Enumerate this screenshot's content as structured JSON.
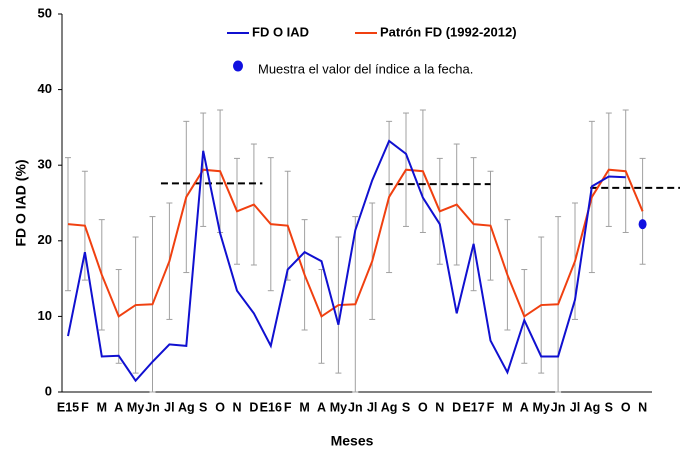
{
  "chart_data": {
    "type": "line",
    "y_label": "FD O IAD (%)",
    "x_label": "Meses",
    "categories": [
      "E15",
      "F",
      "M",
      "A",
      "My",
      "Jn",
      "Jl",
      "Ag",
      "S",
      "O",
      "N",
      "D",
      "E16",
      "F",
      "M",
      "A",
      "My",
      "Jn",
      "Jl",
      "Ag",
      "S",
      "O",
      "N",
      "D",
      "E17",
      "F",
      "M",
      "A",
      "My",
      "Jn",
      "Jl",
      "Ag",
      "S",
      "O",
      "N"
    ],
    "ylim": [
      0,
      50
    ],
    "yticks": [
      0,
      10,
      20,
      30,
      40,
      50
    ],
    "grid": false,
    "series": [
      {
        "name": "FD O IAD",
        "color": "#1010d0",
        "values": [
          7.4,
          18.5,
          4.7,
          4.8,
          1.5,
          4,
          6.3,
          6.1,
          31.9,
          21,
          13.4,
          10.4,
          6.1,
          16.2,
          18.5,
          17.3,
          8.9,
          21.4,
          28,
          33.2,
          31.5,
          25.7,
          22.2,
          10.4,
          19.6,
          6.8,
          2.6,
          9.5,
          4.7,
          4.7,
          12.2,
          27.2,
          28.5,
          28.4,
          null
        ]
      },
      {
        "name": "Patrón FD (1992-2012)",
        "color": "#f04010",
        "values": [
          22.2,
          22,
          15.5,
          10,
          11.5,
          11.6,
          17.3,
          25.8,
          29.4,
          29.2,
          23.9,
          24.8,
          22.2,
          22,
          15.5,
          10,
          11.5,
          11.6,
          17.3,
          25.8,
          29.4,
          29.2,
          23.9,
          24.8,
          22.2,
          22,
          15.5,
          10,
          11.5,
          11.6,
          17.3,
          25.8,
          29.4,
          29.2,
          23.9
        ],
        "errors": [
          8.8,
          7.2,
          7.3,
          6.2,
          9,
          11.6,
          7.7,
          10,
          7.5,
          8.1,
          7,
          8,
          8.8,
          7.2,
          7.3,
          6.2,
          9,
          11.6,
          7.7,
          10,
          7.5,
          8.1,
          7,
          8,
          8.8,
          7.2,
          7.3,
          6.2,
          9,
          11.6,
          7.7,
          10,
          7.5,
          8.1,
          7
        ],
        "error_color": "#a0a0a0"
      }
    ],
    "current_value": {
      "index": 34,
      "value": 22.2,
      "color": "#1010e0",
      "label": "Muestra el valor del índice a la fecha."
    },
    "reference_lines": [
      {
        "value": 27.6,
        "x_range": [
          5.5,
          11.5
        ]
      },
      {
        "value": 27.5,
        "x_range": [
          18.8,
          25
        ]
      },
      {
        "value": 27,
        "x_range": [
          30.9,
          36.5
        ]
      }
    ]
  }
}
